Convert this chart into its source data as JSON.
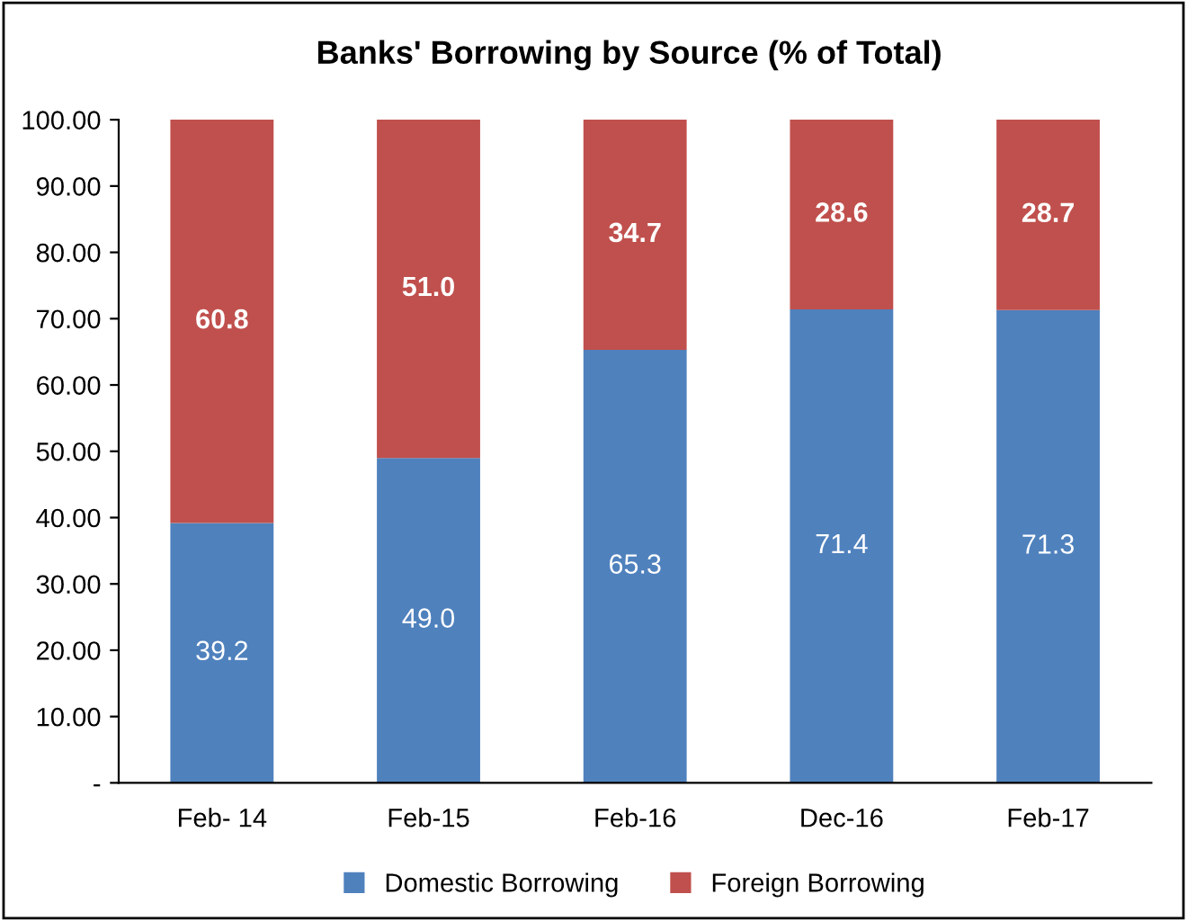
{
  "chart_data": {
    "type": "bar",
    "title": "Banks' Borrowing by Source (% of Total)",
    "stacked": true,
    "categories": [
      "Feb- 14",
      "Feb-15",
      "Feb-16",
      "Dec-16",
      "Feb-17"
    ],
    "series": [
      {
        "name": "Domestic Borrowing",
        "color": "#4f81bd",
        "values": [
          39.2,
          49.0,
          65.3,
          71.4,
          71.3
        ],
        "value_labels": [
          "39.2",
          "49.0",
          "65.3",
          "71.4",
          "71.3"
        ]
      },
      {
        "name": "Foreign Borrowing",
        "color": "#c0504d",
        "values": [
          60.8,
          51.0,
          34.7,
          28.6,
          28.7
        ],
        "value_labels": [
          "60.8",
          "51.0",
          "34.7",
          "28.6",
          "28.7"
        ]
      }
    ],
    "ylim": [
      0,
      100
    ],
    "yticks": [
      {
        "value": 0,
        "label": "-"
      },
      {
        "value": 10,
        "label": "10.00"
      },
      {
        "value": 20,
        "label": "20.00"
      },
      {
        "value": 30,
        "label": "30.00"
      },
      {
        "value": 40,
        "label": "40.00"
      },
      {
        "value": 50,
        "label": "50.00"
      },
      {
        "value": 60,
        "label": "60.00"
      },
      {
        "value": 70,
        "label": "70.00"
      },
      {
        "value": 80,
        "label": "80.00"
      },
      {
        "value": 90,
        "label": "90.00"
      },
      {
        "value": 100,
        "label": "100.00"
      }
    ],
    "grid": false,
    "legend": "bottom"
  }
}
